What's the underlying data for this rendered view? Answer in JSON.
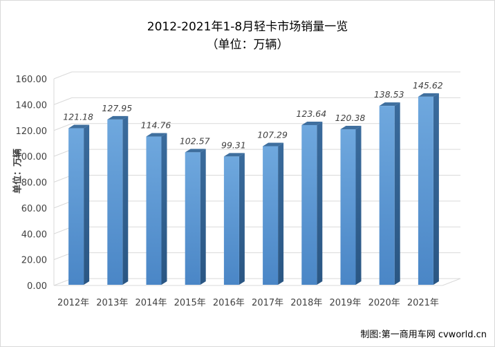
{
  "chart_data": {
    "type": "bar",
    "title": "2012-2021年1-8月轻卡市场销量一览",
    "subtitle": "（单位：万辆）",
    "ylabel": "单位：万辆",
    "xlabel": "",
    "categories": [
      "2012年",
      "2013年",
      "2014年",
      "2015年",
      "2016年",
      "2017年",
      "2018年",
      "2019年",
      "2020年",
      "2021年"
    ],
    "values": [
      121.18,
      127.95,
      114.76,
      102.57,
      99.31,
      107.29,
      123.64,
      120.38,
      138.53,
      145.62
    ],
    "value_labels": [
      "121.18",
      "127.95",
      "114.76",
      "102.57",
      "99.31",
      "107.29",
      "123.64",
      "120.38",
      "138.53",
      "145.62"
    ],
    "ylim": [
      0,
      160
    ],
    "yticks": [
      "0.00",
      "20.00",
      "40.00",
      "60.00",
      "80.00",
      "100.00",
      "120.00",
      "140.00",
      "160.00"
    ],
    "grid": true,
    "style": "3d-column",
    "colors": {
      "bar": "#5b9bd5",
      "bar_side": "#2e5f8f",
      "bar_top": "#3f6f9e",
      "grid": "#d9d9d9"
    }
  },
  "credit": "制图:第一商用车网 cvworld.cn"
}
